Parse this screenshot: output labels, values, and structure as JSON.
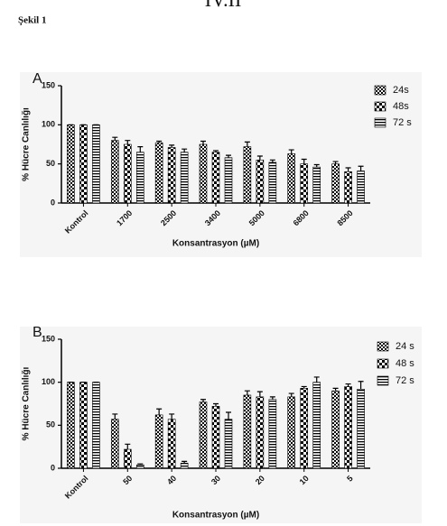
{
  "header": "IV.II",
  "figure_label": "Şekil 1",
  "chart_data": [
    {
      "type": "bar",
      "panel": "A",
      "ylabel": "% Hücre Canlılığı",
      "xlabel": "Konsantrasyon (µM)",
      "categories": [
        "Kontrol",
        "1700",
        "2500",
        "3400",
        "5000",
        "6800",
        "8500"
      ],
      "ylim": [
        0,
        150
      ],
      "yticks": [
        0,
        50,
        100,
        150
      ],
      "series": [
        {
          "name": "24s",
          "pattern": "checker",
          "values": [
            100,
            80,
            77,
            75,
            72,
            63,
            50
          ],
          "errors": [
            0,
            4,
            2,
            4,
            6,
            5,
            3
          ]
        },
        {
          "name": "48s",
          "pattern": "block",
          "values": [
            100,
            75,
            71,
            65,
            55,
            50,
            40
          ],
          "errors": [
            0,
            5,
            3,
            2,
            5,
            6,
            5
          ]
        },
        {
          "name": "72 s",
          "pattern": "stripes",
          "values": [
            100,
            65,
            65,
            58,
            52,
            46,
            41
          ],
          "errors": [
            0,
            7,
            4,
            3,
            3,
            3,
            6
          ]
        }
      ]
    },
    {
      "type": "bar",
      "panel": "B",
      "ylabel": "% Hücre Canlılığı",
      "xlabel": "Konsantrasyon (µM)",
      "categories": [
        "Kontrol",
        "50",
        "40",
        "30",
        "20",
        "10",
        "5"
      ],
      "ylim": [
        0,
        150
      ],
      "yticks": [
        0,
        50,
        100,
        150
      ],
      "series": [
        {
          "name": "24 s",
          "pattern": "checker",
          "values": [
            100,
            57,
            62,
            77,
            85,
            83,
            90
          ],
          "errors": [
            0,
            6,
            7,
            3,
            5,
            4,
            3
          ]
        },
        {
          "name": "48 s",
          "pattern": "block",
          "values": [
            100,
            22,
            57,
            72,
            83,
            93,
            95
          ],
          "errors": [
            0,
            6,
            6,
            3,
            6,
            2,
            3
          ]
        },
        {
          "name": "72 s",
          "pattern": "stripes",
          "values": [
            100,
            4,
            6,
            57,
            80,
            100,
            92
          ],
          "errors": [
            0,
            1,
            2,
            8,
            3,
            6,
            9
          ]
        }
      ]
    }
  ]
}
